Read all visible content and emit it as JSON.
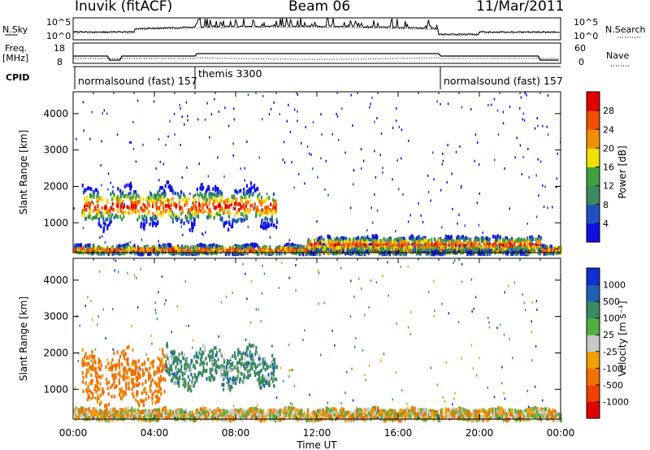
{
  "header": {
    "station": "Inuvik (fitACF)",
    "beam": "Beam 06",
    "date": "11/Mar/2011"
  },
  "noise_panel": {
    "left_label": "N.Sky",
    "right_label": "N.Search",
    "left_ticks": [
      "10^5",
      "10^0"
    ],
    "right_ticks": [
      "10^5",
      "10^0"
    ]
  },
  "freq_panel": {
    "left_label_1": "Freq.",
    "left_label_2": "[MHz]",
    "left_ticks": [
      "18",
      "8"
    ],
    "right_label": "Nave",
    "right_ticks": [
      "60",
      "0"
    ]
  },
  "cpid_panel": {
    "label": "CPID",
    "segments": [
      {
        "name": "normalsound (fast) 157",
        "start_hour": 0
      },
      {
        "name": "themis 3300",
        "start_hour": 6
      },
      {
        "name": "normalsound (fast) 157",
        "start_hour": 18
      }
    ]
  },
  "power_panel": {
    "ylabel": "Slant Range [km]",
    "yticks": [
      "1000",
      "2000",
      "3000",
      "4000"
    ],
    "cbar_label": "Power [dB]",
    "cbar_ticks": [
      "4",
      "8",
      "12",
      "16",
      "20",
      "24",
      "28"
    ],
    "cbar_colors": [
      "#1010e0",
      "#2050c0",
      "#3a8a60",
      "#40a040",
      "#f0e000",
      "#f09000",
      "#f05000",
      "#e00000"
    ]
  },
  "velocity_panel": {
    "ylabel": "Slant Range [km]",
    "yticks": [
      "1000",
      "2000",
      "3000",
      "4000"
    ],
    "cbar_label": "Velocity [m s⁻¹]",
    "cbar_ticks": [
      "1000",
      "500",
      "100",
      "25",
      "-25",
      "-100",
      "-500",
      "-1000"
    ],
    "cbar_colors": [
      "#1030d0",
      "#2060b0",
      "#3a8a60",
      "#50b040",
      "#c8c8c8",
      "#f0a000",
      "#f07000",
      "#f04000",
      "#e00000"
    ]
  },
  "time_axis": {
    "xlabel": "Time UT",
    "ticks": [
      "00:00",
      "04:00",
      "08:00",
      "12:00",
      "16:00",
      "20:00",
      "00:00"
    ]
  },
  "chart_data": {
    "type": "heatmap",
    "title": "Inuvik (fitACF)",
    "subtitle": "Beam 06",
    "xlabel": "Time UT",
    "ylabel": "Slant Range [km]",
    "xlim_hours": [
      0,
      24
    ],
    "ylim_km": [
      180,
      4600
    ],
    "series": [
      {
        "name": "Power [dB]",
        "scatter_bands": [
          {
            "t0": 0.4,
            "t1": 10.0,
            "r_center": 1500,
            "r_half": 450,
            "value_peak": 28
          },
          {
            "t0": 0.0,
            "t1": 24.0,
            "r_center": 300,
            "r_half": 120,
            "value_peak": 24
          },
          {
            "t0": 11.5,
            "t1": 23.0,
            "r_center": 450,
            "r_half": 200,
            "value_peak": 20
          }
        ],
        "colorbar_ticks": [
          4,
          8,
          12,
          16,
          20,
          24,
          28
        ]
      },
      {
        "name": "Velocity [m s⁻¹]",
        "scatter_bands": [
          {
            "t0": 0.4,
            "t1": 4.5,
            "r_center": 1350,
            "r_half": 650,
            "value_peak": -100
          },
          {
            "t0": 4.5,
            "t1": 10.0,
            "r_center": 1650,
            "r_half": 450,
            "value_peak": 500
          },
          {
            "t0": 0.0,
            "t1": 24.0,
            "r_center": 350,
            "r_half": 150,
            "value_peak": 25
          }
        ],
        "colorbar_ticks": [
          1000,
          500,
          100,
          25,
          -25,
          -100,
          -500,
          -1000
        ]
      }
    ]
  }
}
